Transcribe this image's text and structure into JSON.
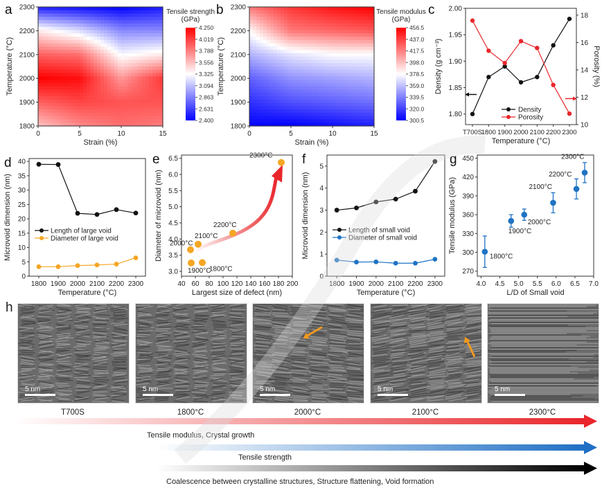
{
  "figure": {
    "panel_letters": [
      "a",
      "b",
      "c",
      "d",
      "e",
      "f",
      "g",
      "h"
    ]
  },
  "chart_data": [
    {
      "id": "a",
      "type": "heatmap",
      "title": "",
      "xlabel": "Strain (%)",
      "ylabel": "Temperature (°C)",
      "xlim": [
        0,
        15
      ],
      "ylim": [
        1800,
        2300
      ],
      "xticks": [
        "0",
        "5",
        "10",
        "15"
      ],
      "yticks": [
        "1800",
        "1900",
        "2000",
        "2100",
        "2200",
        "2300"
      ],
      "colorbar_title": [
        "Tensile strength",
        "(GPa)"
      ],
      "colorbar_ticks": [
        "4.250",
        "4.019",
        "3.788",
        "3.556",
        "3.325",
        "3.094",
        "2.863",
        "2.631",
        "2.400"
      ],
      "colorbar_range": [
        2.4,
        4.25
      ],
      "x": [
        0,
        5,
        10,
        15
      ],
      "y": [
        1800,
        1900,
        2000,
        2100,
        2200,
        2300
      ],
      "z": [
        [
          3.55,
          3.75,
          3.85,
          3.8
        ],
        [
          3.9,
          4.0,
          3.95,
          3.95
        ],
        [
          4.25,
          4.2,
          3.7,
          4.05
        ],
        [
          3.9,
          3.85,
          3.3,
          3.4
        ],
        [
          3.4,
          3.2,
          2.9,
          2.9
        ],
        [
          2.5,
          2.45,
          2.4,
          2.5
        ]
      ]
    },
    {
      "id": "b",
      "type": "heatmap",
      "title": "",
      "xlabel": "Strain (%)",
      "ylabel": "Temperature (°C)",
      "xlim": [
        0,
        15
      ],
      "ylim": [
        1800,
        2300
      ],
      "xticks": [
        "0",
        "5",
        "10",
        "15"
      ],
      "yticks": [
        "1800",
        "1900",
        "2000",
        "2100",
        "2200",
        "2300"
      ],
      "colorbar_title": [
        "Tensile modulus",
        "(GPa)"
      ],
      "colorbar_ticks": [
        "456.5",
        "437.0",
        "417.5",
        "398.0",
        "378.5",
        "359.0",
        "339.5",
        "320.0",
        "300.5"
      ],
      "colorbar_range": [
        300.5,
        456.5
      ],
      "x": [
        0,
        5,
        10,
        15
      ],
      "y": [
        1800,
        1900,
        2000,
        2100,
        2200,
        2300
      ],
      "z": [
        [
          302,
          300.5,
          305,
          310
        ],
        [
          315,
          325,
          330,
          335
        ],
        [
          330,
          345,
          350,
          355
        ],
        [
          355,
          370,
          378,
          378
        ],
        [
          380,
          420,
          425,
          430
        ],
        [
          420,
          440,
          450,
          456.5
        ]
      ]
    },
    {
      "id": "c",
      "type": "line",
      "xlabel": "Temperature (°C)",
      "ylabel": "Density (g cm⁻³)",
      "y2label": "Porosity (%)",
      "categories": [
        "T700S",
        "1800",
        "1900",
        "2000",
        "2100",
        "2200",
        "2300"
      ],
      "ylim": [
        1.78,
        2.0
      ],
      "yticks": [
        "1.80",
        "1.85",
        "1.90",
        "1.95",
        "2.00"
      ],
      "y2lim": [
        10,
        18.5
      ],
      "y2ticks": [
        "10",
        "12",
        "14",
        "16",
        "18"
      ],
      "legend": "bottom-center",
      "series": [
        {
          "name": "Density",
          "axis": "left",
          "color": "#111111",
          "values": [
            1.8,
            1.87,
            1.89,
            1.86,
            1.87,
            1.93,
            1.98
          ]
        },
        {
          "name": "Porosity",
          "axis": "right",
          "color": "#e8262b",
          "values": [
            17.6,
            15.4,
            14.5,
            16.1,
            15.6,
            12.9,
            10.8
          ]
        }
      ]
    },
    {
      "id": "d",
      "type": "line",
      "xlabel": "Temperature (°C)",
      "ylabel": "Microvoid dimension (nm)",
      "x": [
        1800,
        1900,
        2000,
        2100,
        2200,
        2300
      ],
      "xticks": [
        "1800",
        "1900",
        "2000",
        "2100",
        "2200",
        "2300"
      ],
      "ylim": [
        0,
        41
      ],
      "yticks": [
        "0",
        "5",
        "10",
        "15",
        "20",
        "25",
        "30",
        "35",
        "40"
      ],
      "legend": "center-left",
      "series": [
        {
          "name": "Length of large void",
          "color": "#111111",
          "values": [
            39.0,
            38.9,
            21.9,
            21.5,
            23.2,
            22.0
          ]
        },
        {
          "name": "Diameter of large void",
          "color": "#f5a623",
          "values": [
            3.3,
            3.3,
            3.7,
            3.9,
            4.2,
            6.4
          ]
        }
      ]
    },
    {
      "id": "e",
      "type": "scatter",
      "xlabel": "Largest size of defect (nm)",
      "ylabel": "Diameter of microvoid (nm)",
      "xlim": [
        40,
        200
      ],
      "xticks": [
        "40",
        "60",
        "80",
        "100",
        "120",
        "140",
        "160",
        "180",
        "200"
      ],
      "ylim": [
        2.85,
        6.6
      ],
      "yticks": [
        "3.0",
        "3.5",
        "4.0",
        "4.5",
        "5.0",
        "5.5",
        "6.0",
        "6.5"
      ],
      "points": [
        {
          "label": "1800°C",
          "x": 70,
          "y": 3.27
        },
        {
          "label": "1900°C",
          "x": 54,
          "y": 3.26
        },
        {
          "label": "2000°C",
          "x": 53,
          "y": 3.67
        },
        {
          "label": "2100°C",
          "x": 64,
          "y": 3.84
        },
        {
          "label": "2200°C",
          "x": 114,
          "y": 4.18
        },
        {
          "label": "2300°C",
          "x": 184,
          "y": 6.37
        }
      ],
      "color": "#f5a623"
    },
    {
      "id": "f",
      "type": "line",
      "xlabel": "Temperature (°C)",
      "ylabel": "Microvoid dimension (nm)",
      "x": [
        1800,
        1900,
        2000,
        2100,
        2200,
        2300
      ],
      "xticks": [
        "1800",
        "1900",
        "2000",
        "2100",
        "2200",
        "2300"
      ],
      "ylim": [
        0,
        5.5
      ],
      "yticks": [
        "0",
        "1",
        "2",
        "3",
        "4",
        "5"
      ],
      "legend": "center-left",
      "series": [
        {
          "name": "Length of small void",
          "color": "#111111",
          "values": [
            3.0,
            3.1,
            3.37,
            3.5,
            3.86,
            5.21
          ]
        },
        {
          "name": "Diameter of small void",
          "color": "#1f73c4",
          "values": [
            0.73,
            0.64,
            0.65,
            0.59,
            0.59,
            0.77
          ]
        }
      ]
    },
    {
      "id": "g",
      "type": "scatter",
      "xlabel": "L/D of Small void",
      "ylabel": "Tensile modulus (GPa)",
      "xlim": [
        3.9,
        7.0
      ],
      "xticks": [
        "4.0",
        "4.5",
        "5.0",
        "5.5",
        "6.0",
        "6.5",
        "7.0"
      ],
      "ylim": [
        262,
        455
      ],
      "yticks": [
        "270",
        "300",
        "330",
        "360",
        "390",
        "420",
        "450"
      ],
      "color": "#1f73c4",
      "points": [
        {
          "label": "1800°C",
          "x": 4.1,
          "y": 301,
          "err": 25
        },
        {
          "label": "1900°C",
          "x": 4.8,
          "y": 350,
          "err": 10
        },
        {
          "label": "2000°C",
          "x": 5.15,
          "y": 360,
          "err": 9
        },
        {
          "label": "2100°C",
          "x": 5.92,
          "y": 379,
          "err": 16
        },
        {
          "label": "2200°C",
          "x": 6.54,
          "y": 401,
          "err": 16
        },
        {
          "label": "2300°C",
          "x": 6.76,
          "y": 427,
          "err": 16
        }
      ]
    }
  ],
  "tem_panel": {
    "images": [
      {
        "label": "T700S",
        "scale": "5 nm",
        "arrow": false
      },
      {
        "label": "1800°C",
        "scale": "5 nm",
        "arrow": false
      },
      {
        "label": "2000°C",
        "scale": "5 nm",
        "arrow": true
      },
      {
        "label": "2100°C",
        "scale": "5 nm",
        "arrow": true
      },
      {
        "label": "2300°C",
        "scale": "5 nm",
        "arrow": false
      }
    ],
    "trends": [
      {
        "text": "Tensile modulus, Crystal growth",
        "color": "#e8262b"
      },
      {
        "text": "Tensile strength",
        "color": "#1f6fc4"
      },
      {
        "text": "Coalescence between crystalline structures, Structure flattening, Void formation",
        "color": "#000000"
      }
    ]
  },
  "colors": {
    "red": "#e8262b",
    "blue": "#1f73c4",
    "orange": "#f5a623",
    "black": "#111111"
  }
}
